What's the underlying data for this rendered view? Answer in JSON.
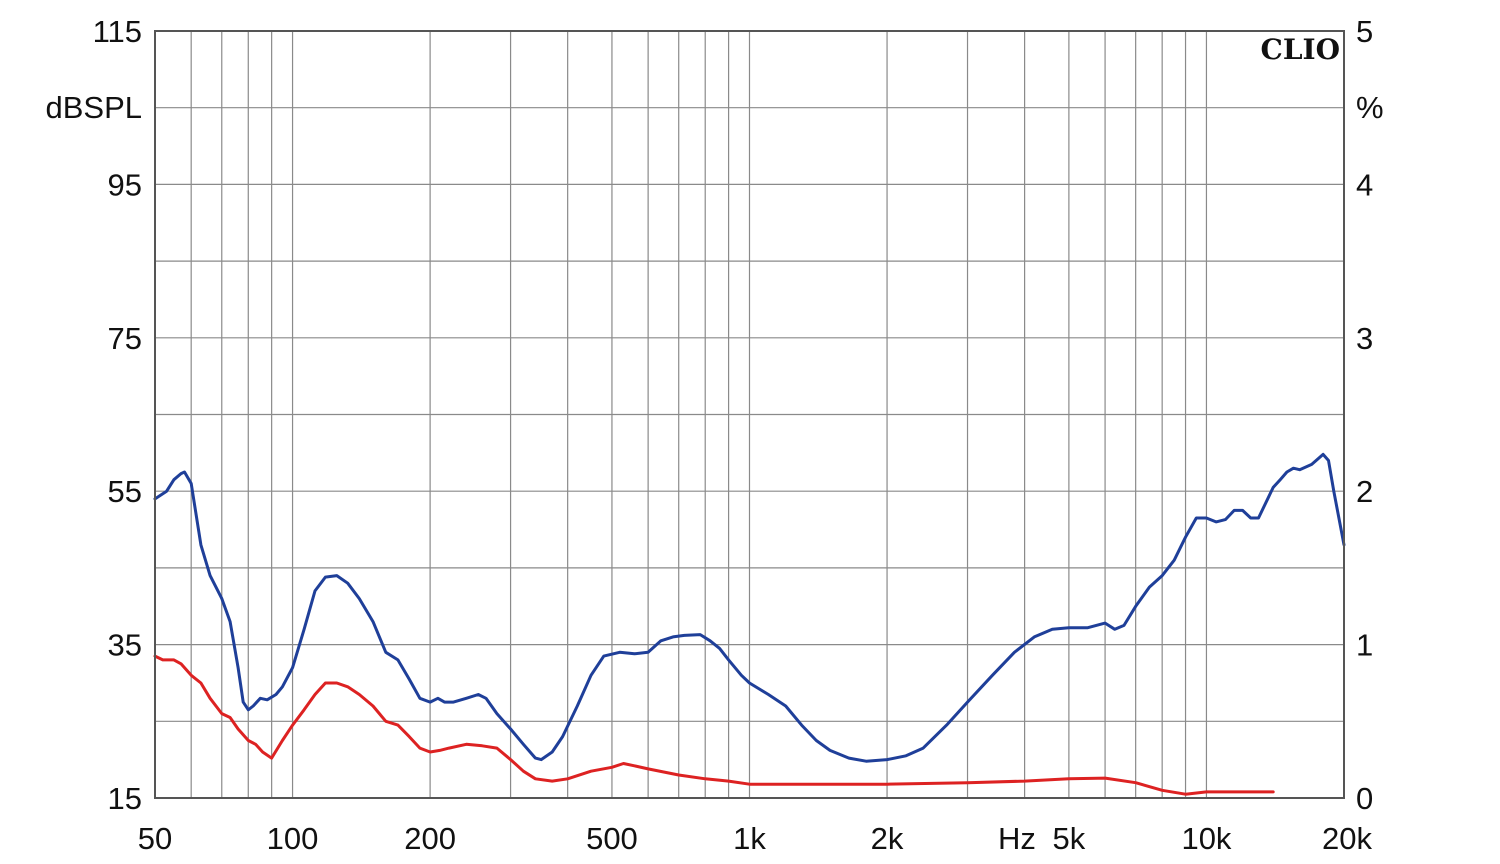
{
  "chart_data": {
    "type": "line",
    "brand_label": "CLIO",
    "x_scale": "log",
    "xlim": [
      50,
      20000
    ],
    "ylim_left": [
      15,
      115
    ],
    "ylim_right": [
      0,
      5
    ],
    "ylabel_left": "dBSPL",
    "ylabel_right": "%",
    "x_unit_label": "Hz",
    "grid": true,
    "x_tick_values": [
      50,
      100,
      200,
      500,
      1000,
      2000,
      5000,
      10000,
      20000
    ],
    "x_tick_labels": [
      "50",
      "100",
      "200",
      "500",
      "1k",
      "2k",
      "5k",
      "10k",
      "20k"
    ],
    "y_left_ticks": [
      115,
      95,
      75,
      55,
      35,
      15
    ],
    "y_left_tick_labels": [
      "115",
      "95",
      "75",
      "55",
      "35",
      "15"
    ],
    "y_right_ticks": [
      5,
      4,
      3,
      2,
      1,
      0
    ],
    "y_right_tick_labels": [
      "5",
      "4",
      "3",
      "2",
      "1",
      "0"
    ],
    "series": [
      {
        "axis": "left",
        "color": "#1f3f99",
        "x": [
          50,
          53,
          55,
          57,
          58,
          60,
          63,
          66,
          70,
          73,
          76,
          78,
          80,
          82,
          85,
          88,
          92,
          95,
          100,
          106,
          112,
          118,
          125,
          132,
          140,
          150,
          160,
          170,
          180,
          190,
          200,
          208,
          215,
          225,
          240,
          255,
          265,
          280,
          300,
          320,
          340,
          350,
          370,
          390,
          420,
          450,
          480,
          520,
          560,
          600,
          640,
          680,
          720,
          780,
          820,
          860,
          900,
          960,
          1000,
          1100,
          1200,
          1300,
          1400,
          1500,
          1650,
          1800,
          2000,
          2200,
          2400,
          2700,
          3000,
          3400,
          3800,
          4200,
          4600,
          5000,
          5500,
          6000,
          6300,
          6600,
          7000,
          7500,
          8000,
          8500,
          9000,
          9500,
          10000,
          10500,
          11000,
          11500,
          12000,
          12500,
          13000,
          14000,
          14500,
          15000,
          15500,
          16000,
          17000,
          18000,
          18500,
          19000,
          20000
        ],
        "y": [
          54,
          55,
          56.5,
          57.3,
          57.5,
          56,
          48,
          44,
          41,
          38,
          32,
          27.5,
          26.5,
          27,
          28,
          27.8,
          28.5,
          29.5,
          32,
          37,
          42,
          43.8,
          44,
          43,
          41,
          38,
          34,
          33,
          30.5,
          28,
          27.5,
          28,
          27.5,
          27.5,
          28,
          28.5,
          28,
          26,
          24,
          22,
          20.2,
          20,
          21,
          23,
          27,
          31,
          33.5,
          34,
          33.8,
          34,
          35.5,
          36,
          36.2,
          36.3,
          35.5,
          34.5,
          33,
          31,
          30,
          28.5,
          27,
          24.5,
          22.5,
          21.2,
          20.2,
          19.8,
          20,
          20.5,
          21.5,
          24.5,
          27.5,
          31,
          34,
          36,
          37,
          37.2,
          37.2,
          37.8,
          37,
          37.5,
          40,
          42.5,
          44,
          46,
          49,
          51.5,
          51.5,
          51,
          51.3,
          52.5,
          52.5,
          51.5,
          51.5,
          55.5,
          56.5,
          57.5,
          58,
          57.8,
          58.5,
          59.8,
          59,
          55,
          48
        ]
      },
      {
        "axis": "left",
        "color": "#dd2222",
        "x": [
          50,
          52,
          55,
          57,
          60,
          63,
          66,
          70,
          73,
          76,
          80,
          83,
          86,
          90,
          95,
          100,
          106,
          112,
          118,
          125,
          132,
          140,
          150,
          160,
          170,
          180,
          190,
          200,
          210,
          220,
          240,
          260,
          280,
          300,
          320,
          340,
          370,
          400,
          450,
          500,
          530,
          560,
          600,
          700,
          800,
          900,
          1000,
          1200,
          1500,
          2000,
          3000,
          4000,
          5000,
          6000,
          7000,
          8000,
          9000,
          10000,
          12000,
          14000
        ],
        "y": [
          33.5,
          33,
          33,
          32.5,
          31,
          30,
          28,
          26,
          25.5,
          24,
          22.5,
          22,
          21,
          20.2,
          22.5,
          24.5,
          26.5,
          28.5,
          30,
          30,
          29.5,
          28.5,
          27,
          25,
          24.5,
          23,
          21.5,
          21,
          21.2,
          21.5,
          22,
          21.8,
          21.5,
          20,
          18.5,
          17.5,
          17.2,
          17.5,
          18.5,
          19,
          19.5,
          19.2,
          18.8,
          18,
          17.5,
          17.2,
          16.8,
          16.8,
          16.8,
          16.8,
          17,
          17.2,
          17.5,
          17.6,
          17,
          16,
          15.5,
          15.8,
          15.8,
          15.8
        ]
      }
    ]
  }
}
